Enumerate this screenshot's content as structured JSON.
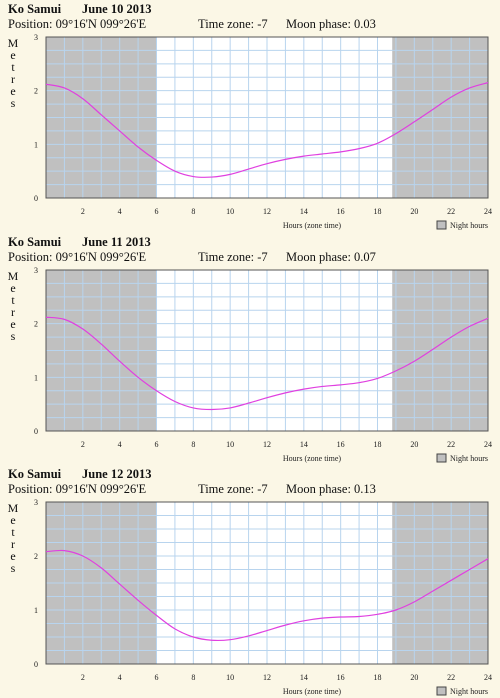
{
  "legend_label": "Night hours",
  "colors": {
    "night": "#c0c0c0",
    "grid": "#b8d4ee",
    "curve": "#e040e0",
    "frame": "#555555"
  },
  "chart_data": [
    {
      "type": "line",
      "location": "Ko Samui",
      "date": "June 10 2013",
      "position": "Position: 09°16'N 099°26'E",
      "timezone": "Time zone: -7",
      "moon": "Moon phase: 0.03",
      "ylabel": "Metres",
      "xlabel": "Hours (zone time)",
      "xlim": [
        0,
        24
      ],
      "ylim": [
        0,
        3
      ],
      "xticks": [
        2,
        4,
        6,
        8,
        10,
        12,
        14,
        16,
        18,
        20,
        22,
        24
      ],
      "yticks": [
        0,
        1,
        2,
        3
      ],
      "night": [
        [
          0,
          6
        ],
        [
          18.8,
          24
        ]
      ],
      "grid": true,
      "legend_position": "bottom-right",
      "x": [
        0,
        1,
        2,
        3,
        4,
        5,
        6,
        7,
        8,
        9,
        10,
        11,
        12,
        13,
        14,
        15,
        16,
        17,
        18,
        19,
        20,
        21,
        22,
        23,
        24
      ],
      "y": [
        2.12,
        2.05,
        1.85,
        1.55,
        1.25,
        0.95,
        0.7,
        0.5,
        0.4,
        0.39,
        0.44,
        0.54,
        0.64,
        0.72,
        0.78,
        0.82,
        0.86,
        0.92,
        1.02,
        1.2,
        1.42,
        1.65,
        1.88,
        2.05,
        2.15
      ]
    },
    {
      "type": "line",
      "location": "Ko Samui",
      "date": "June 11 2013",
      "position": "Position: 09°16'N 099°26'E",
      "timezone": "Time zone: -7",
      "moon": "Moon phase: 0.07",
      "ylabel": "Metres",
      "xlabel": "Hours (zone time)",
      "xlim": [
        0,
        24
      ],
      "ylim": [
        0,
        3
      ],
      "xticks": [
        2,
        4,
        6,
        8,
        10,
        12,
        14,
        16,
        18,
        20,
        22,
        24
      ],
      "yticks": [
        0,
        1,
        2,
        3
      ],
      "night": [
        [
          0,
          6
        ],
        [
          18.8,
          24
        ]
      ],
      "grid": true,
      "legend_position": "bottom-right",
      "x": [
        0,
        1,
        2,
        3,
        4,
        5,
        6,
        7,
        8,
        9,
        10,
        11,
        12,
        13,
        14,
        15,
        16,
        17,
        18,
        19,
        20,
        21,
        22,
        23,
        24
      ],
      "y": [
        2.12,
        2.08,
        1.9,
        1.62,
        1.3,
        1.0,
        0.75,
        0.55,
        0.43,
        0.4,
        0.43,
        0.52,
        0.62,
        0.71,
        0.78,
        0.83,
        0.86,
        0.9,
        0.98,
        1.12,
        1.3,
        1.52,
        1.75,
        1.95,
        2.1
      ]
    },
    {
      "type": "line",
      "location": "Ko Samui",
      "date": "June 12 2013",
      "position": "Position: 09°16'N 099°26'E",
      "timezone": "Time zone: -7",
      "moon": "Moon phase: 0.13",
      "ylabel": "Metres",
      "xlabel": "Hours (zone time)",
      "xlim": [
        0,
        24
      ],
      "ylim": [
        0,
        3
      ],
      "xticks": [
        2,
        4,
        6,
        8,
        10,
        12,
        14,
        16,
        18,
        20,
        22,
        24
      ],
      "yticks": [
        0,
        1,
        2,
        3
      ],
      "night": [
        [
          0,
          6
        ],
        [
          18.8,
          24
        ]
      ],
      "grid": true,
      "legend_position": "bottom-right",
      "x": [
        0,
        1,
        2,
        3,
        4,
        5,
        6,
        7,
        8,
        9,
        10,
        11,
        12,
        13,
        14,
        15,
        16,
        17,
        18,
        19,
        20,
        21,
        22,
        23,
        24
      ],
      "y": [
        2.08,
        2.1,
        2.0,
        1.78,
        1.48,
        1.18,
        0.9,
        0.65,
        0.5,
        0.44,
        0.45,
        0.52,
        0.62,
        0.72,
        0.8,
        0.85,
        0.87,
        0.88,
        0.92,
        1.0,
        1.15,
        1.35,
        1.55,
        1.75,
        1.95
      ]
    }
  ]
}
